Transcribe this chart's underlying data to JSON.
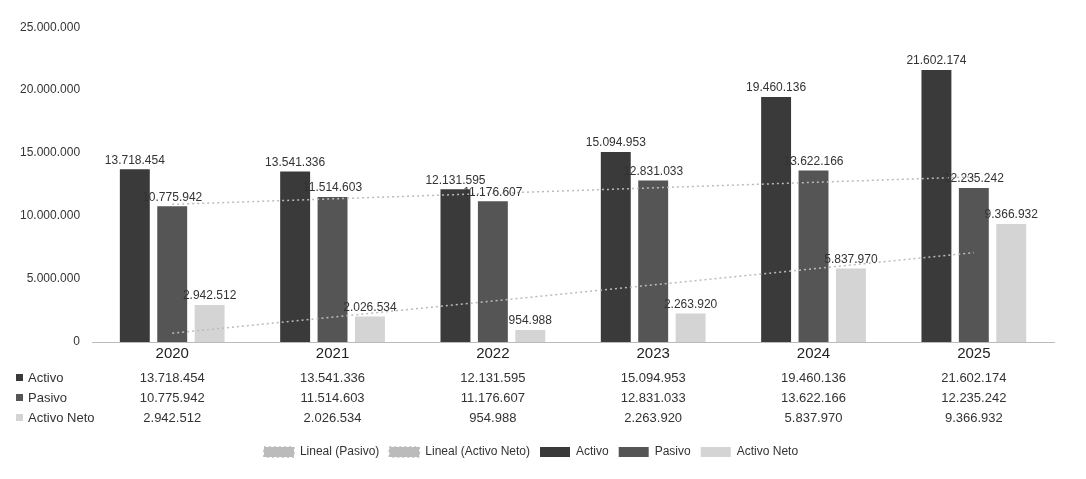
{
  "chart_data": {
    "type": "bar",
    "categories": [
      "2020",
      "2021",
      "2022",
      "2023",
      "2024",
      "2025"
    ],
    "series": [
      {
        "name": "Activo",
        "color": "#3a3a3a",
        "values": [
          13718454,
          13541336,
          12131595,
          15094953,
          19460136,
          21602174
        ],
        "value_labels": [
          "13.718.454",
          "13.541.336",
          "12.131.595",
          "15.094.953",
          "19.460.136",
          "21.602.174"
        ]
      },
      {
        "name": "Pasivo",
        "color": "#555555",
        "values": [
          10775942,
          11514603,
          11176607,
          12831033,
          13622166,
          12235242
        ],
        "value_labels": [
          "10.775.942",
          "11.514.603",
          "11.176.607",
          "12.831.033",
          "13.622.166",
          "12.235.242"
        ]
      },
      {
        "name": "Activo Neto",
        "color": "#d4d4d4",
        "values": [
          2942512,
          2026534,
          954988,
          2263920,
          5837970,
          9366932
        ],
        "value_labels": [
          "2.942.512",
          "2.026.534",
          "954.988",
          "2.263.920",
          "5.837.970",
          "9.366.932"
        ]
      },
      {
        "name": "Lineal (Pasivo)",
        "type": "line",
        "color": "#bbbbbb",
        "values": [
          10930000,
          11367000,
          11804000,
          12241000,
          12678000,
          13115000
        ]
      },
      {
        "name": "Lineal (Activo Neto)",
        "type": "line",
        "color": "#bbbbbb",
        "values": [
          690000,
          1972000,
          3254000,
          4536000,
          5818000,
          7100000
        ]
      }
    ],
    "ylim": [
      0,
      25000000
    ],
    "yticks": [
      {
        "value": 0,
        "label": "0"
      },
      {
        "value": 5000000,
        "label": "5.000.000"
      },
      {
        "value": 10000000,
        "label": "10.000.000"
      },
      {
        "value": 15000000,
        "label": "15.000.000"
      },
      {
        "value": 20000000,
        "label": "20.000.000"
      },
      {
        "value": 25000000,
        "label": "25.000.000"
      }
    ],
    "grid": false,
    "legend": "bottom",
    "marker": "none",
    "line_style": "dotted"
  }
}
